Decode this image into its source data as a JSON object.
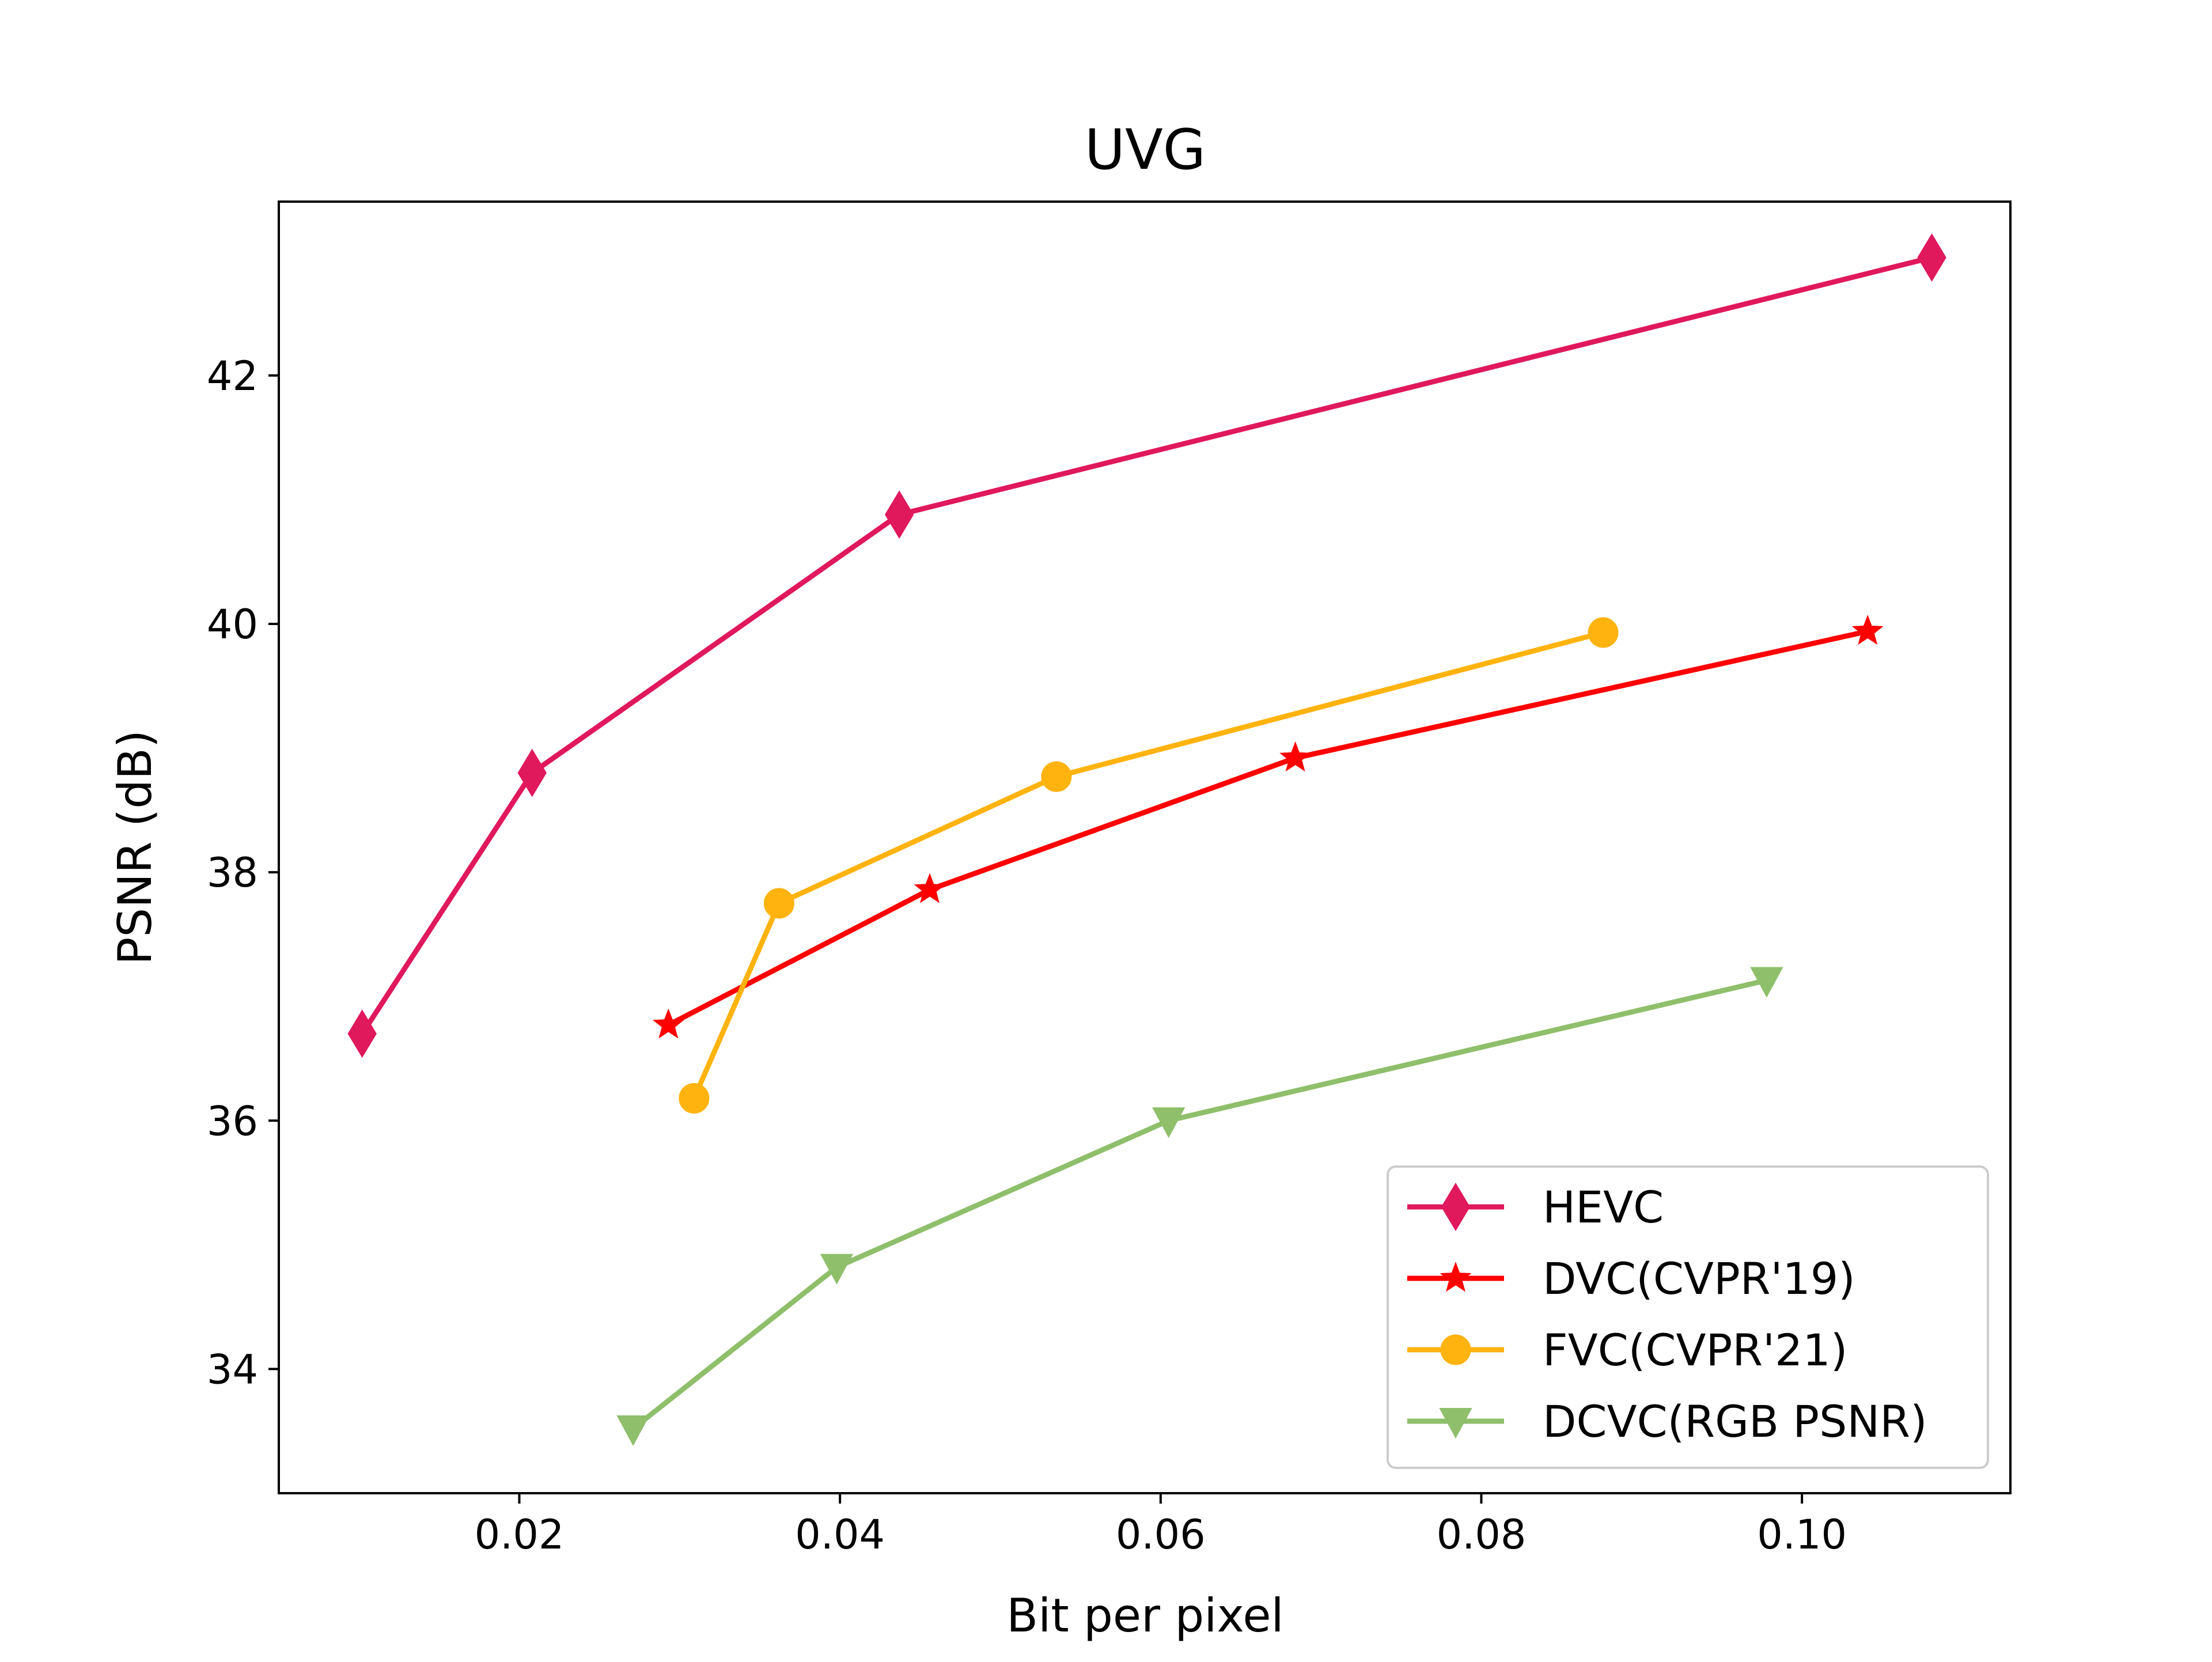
{
  "chart_data": {
    "type": "line",
    "title": "UVG",
    "xlabel": "Bit per pixel",
    "ylabel": "PSNR (dB)",
    "xlim": [
      0.005,
      0.113
    ],
    "ylim": [
      33.0,
      43.4
    ],
    "xticks": [
      0.02,
      0.04,
      0.06,
      0.08,
      0.1
    ],
    "xtick_labels": [
      "0.02",
      "0.04",
      "0.06",
      "0.08",
      "0.10"
    ],
    "yticks": [
      34,
      36,
      38,
      40,
      42
    ],
    "ytick_labels": [
      "34",
      "36",
      "38",
      "40",
      "42"
    ],
    "grid": false,
    "legend_position": "lower-right",
    "series": [
      {
        "name": "HEVC",
        "color": "#e0185c",
        "marker": "diamond",
        "x": [
          0.0102,
          0.0208,
          0.0437,
          0.1081
        ],
        "y": [
          36.7,
          38.8,
          40.88,
          42.95
        ]
      },
      {
        "name": "DVC(CVPR'19)",
        "color": "#ff0000",
        "marker": "star",
        "x": [
          0.0293,
          0.0456,
          0.0684,
          0.1041
        ],
        "y": [
          36.77,
          37.86,
          38.92,
          39.94
        ]
      },
      {
        "name": "FVC(CVPR'21)",
        "color": "#ffb30f",
        "marker": "circle",
        "x": [
          0.0309,
          0.0362,
          0.0535,
          0.0876
        ],
        "y": [
          36.18,
          37.75,
          38.77,
          39.93
        ]
      },
      {
        "name": "DCVC(RGB PSNR)",
        "color": "#8fbf6b",
        "marker": "triangle-down",
        "x": [
          0.0271,
          0.0398,
          0.0605,
          0.0978
        ],
        "y": [
          33.52,
          34.82,
          36.0,
          37.13
        ]
      }
    ]
  }
}
